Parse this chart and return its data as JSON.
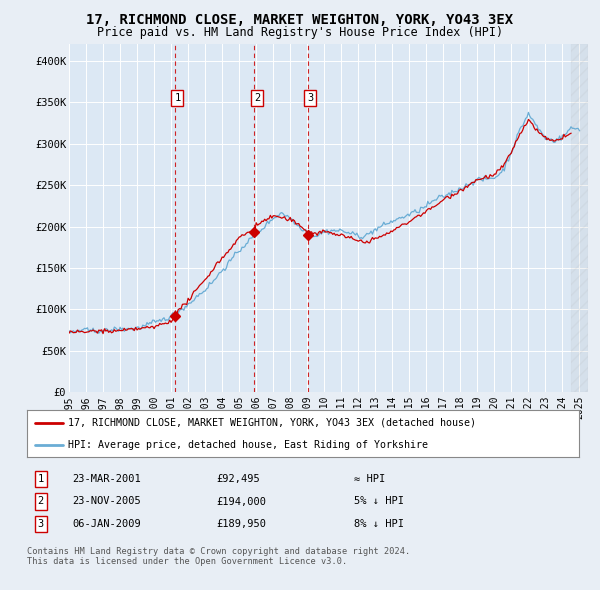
{
  "title": "17, RICHMOND CLOSE, MARKET WEIGHTON, YORK, YO43 3EX",
  "subtitle": "Price paid vs. HM Land Registry's House Price Index (HPI)",
  "background_color": "#e8eef5",
  "plot_bg_color": "#dce8f4",
  "hpi_color": "#6aadd5",
  "price_color": "#cc0000",
  "vline_color": "#cc0000",
  "ylim": [
    0,
    420000
  ],
  "yticks": [
    0,
    50000,
    100000,
    150000,
    200000,
    250000,
    300000,
    350000,
    400000
  ],
  "ytick_labels": [
    "£0",
    "£50K",
    "£100K",
    "£150K",
    "£200K",
    "£250K",
    "£300K",
    "£350K",
    "£400K"
  ],
  "sales": [
    {
      "date_num": 2001.22,
      "price": 92495,
      "label": "1"
    },
    {
      "date_num": 2005.9,
      "price": 194000,
      "label": "2"
    },
    {
      "date_num": 2009.02,
      "price": 189950,
      "label": "3"
    }
  ],
  "sale_dates": [
    "23-MAR-2001",
    "23-NOV-2005",
    "06-JAN-2009"
  ],
  "sale_prices": [
    "£92,495",
    "£194,000",
    "£189,950"
  ],
  "sale_hpi_rel": [
    "≈ HPI",
    "5% ↓ HPI",
    "8% ↓ HPI"
  ],
  "legend_line1": "17, RICHMOND CLOSE, MARKET WEIGHTON, YORK, YO43 3EX (detached house)",
  "legend_line2": "HPI: Average price, detached house, East Riding of Yorkshire",
  "footer1": "Contains HM Land Registry data © Crown copyright and database right 2024.",
  "footer2": "This data is licensed under the Open Government Licence v3.0.",
  "xmin": 1995,
  "xmax": 2025.5,
  "xticks": [
    1995,
    1996,
    1997,
    1998,
    1999,
    2000,
    2001,
    2002,
    2003,
    2004,
    2005,
    2006,
    2007,
    2008,
    2009,
    2010,
    2011,
    2012,
    2013,
    2014,
    2015,
    2016,
    2017,
    2018,
    2019,
    2020,
    2021,
    2022,
    2023,
    2024,
    2025
  ]
}
